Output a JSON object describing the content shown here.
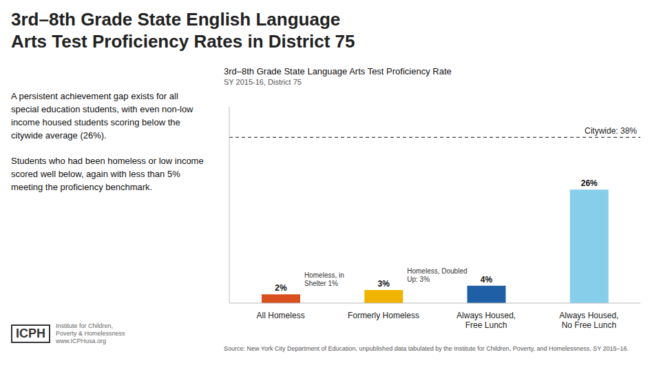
{
  "chart_data": {
    "type": "bar",
    "title": "3rd–8th Grade State English Language\nArts Test Proficiency Rates in District 75",
    "chart_title": "3rd–8th Grade State Language Arts Test Proficiency Rate",
    "subtitle": "SY 2015-16, District 75",
    "text": [
      "A persistent achievement gap exists for all special education students, with even non-low income housed students scoring below the citywide average (26%).",
      "Students who had been homeless or low income scored well below, again with less than 5% meeting the proficiency benchmark."
    ],
    "categories": [
      "All Homeless",
      "Formerly Homeless",
      "Always Housed,\nFree Lunch",
      "Always Housed,\nNo Free Lunch"
    ],
    "values": [
      2,
      3,
      4,
      26
    ],
    "value_labels": [
      "2%",
      "3%",
      "4%",
      "26%"
    ],
    "data_labels": true,
    "colors": [
      "#d94f1e",
      "#f0b400",
      "#1f5fa6",
      "#87ceeb"
    ],
    "ylim": [
      0,
      45
    ],
    "yticks": [],
    "tick_labels": "x",
    "grid": false,
    "annotations": [
      "Homeless, in\nShelter 1%",
      "Homeless, Doubled\nUp: 3%"
    ],
    "reference_line": {
      "value": 38,
      "label": "Citywide: 38%"
    },
    "source": "Source: New York City Department of Education, unpublished data tabulated by the Institute for Children, Poverty, and Homelessness, SY 2015–16.",
    "logo": "ICPH",
    "logo_text": "Institute for Children,\nPoverty & Homelessness\nwww.ICPHusa.org"
  }
}
